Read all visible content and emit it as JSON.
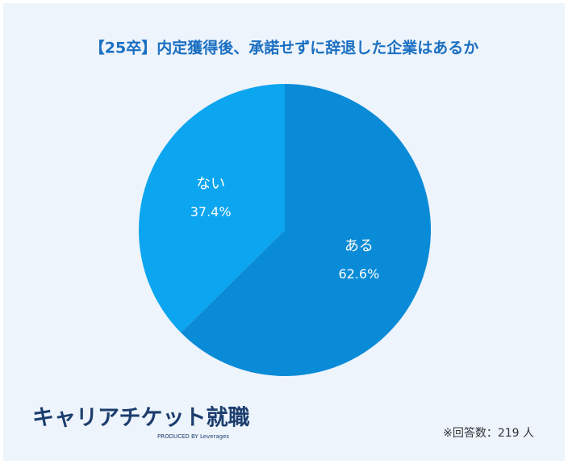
{
  "chart_data": {
    "type": "pie",
    "title": "【25卒】内定獲得後、承諾せずに辞退した企業はあるか",
    "categories": [
      "ある",
      "ない"
    ],
    "values": [
      62.6,
      37.4
    ],
    "value_labels": [
      "62.6%",
      "37.4%"
    ],
    "colors": [
      "#0a8bd8",
      "#0ba5f0"
    ],
    "note": "※回答数：219 人"
  },
  "logo": {
    "name": "キャリアチケット就職",
    "byline": "PRODUCED BY Leverages"
  }
}
